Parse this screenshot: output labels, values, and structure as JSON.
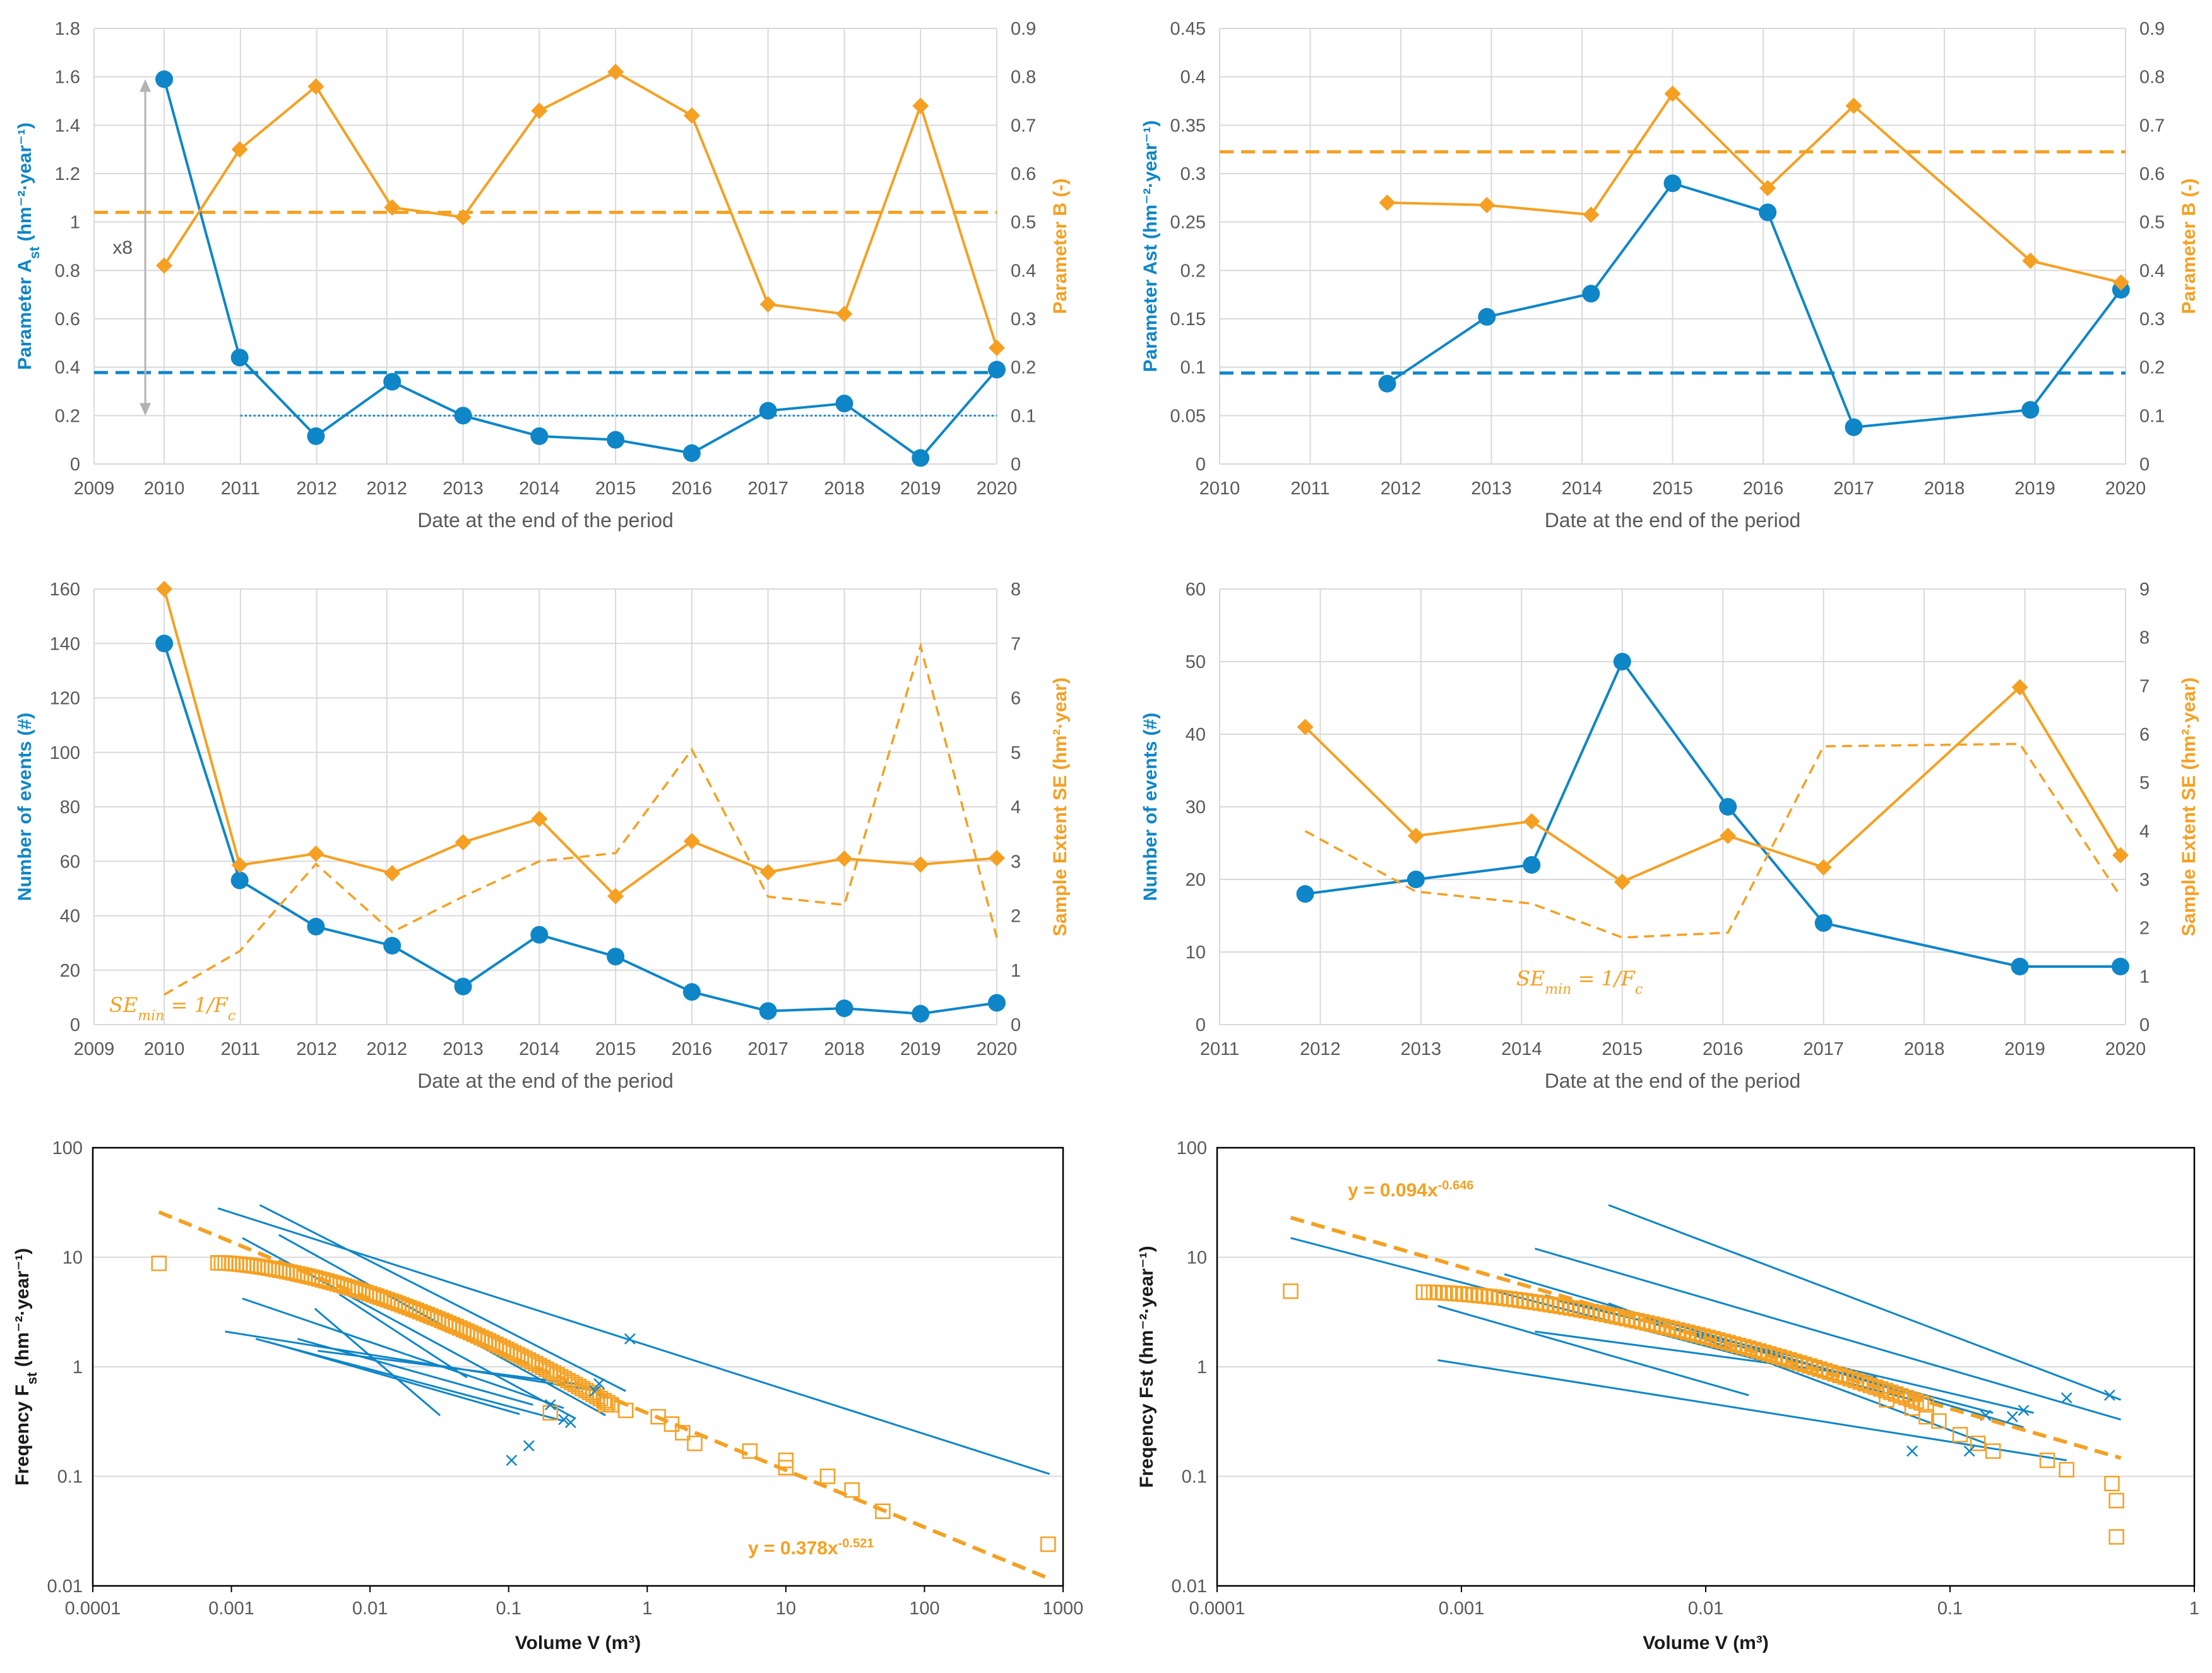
{
  "colors": {
    "blue": "#0e86c8",
    "orange": "#f5a022",
    "grid": "#d9d9d9",
    "axis": "#595959"
  },
  "chart_data": [
    {
      "id": "A",
      "type": "line",
      "xlabel": "Date at the end of the period",
      "ylabel_left_prefix": "Parameter A",
      "ylabel_left_sub": "st",
      "ylabel_left_suffix": " (hm⁻²·year⁻¹)",
      "ylabel_right": "Parameter B (-)",
      "x_tick_labels": [
        "2009",
        "2010",
        "2011",
        "2012",
        "2012",
        "2013",
        "2014",
        "2015",
        "2016",
        "2017",
        "2018",
        "2019",
        "2020"
      ],
      "x_tick_pos": [
        2009.0,
        2009.92,
        2010.92,
        2011.92,
        2012.84,
        2013.84,
        2014.84,
        2015.84,
        2016.84,
        2017.84,
        2018.84,
        2019.84,
        2020.84
      ],
      "ylim_left": [
        0,
        1.8
      ],
      "ylim_right": [
        0,
        0.9
      ],
      "yticks_left": [
        "0",
        "0.2",
        "0.4",
        "0.6",
        "0.8",
        "1",
        "1.2",
        "1.4",
        "1.6",
        "1.8"
      ],
      "yticks_right": [
        "0",
        "0.1",
        "0.2",
        "0.3",
        "0.4",
        "0.5",
        "0.6",
        "0.7",
        "0.8",
        "0.9"
      ],
      "series": [
        {
          "name": "Parameter Ast",
          "axis": "left",
          "color": "blue",
          "marker": "circle",
          "x": [
            2009.92,
            2010.91,
            2011.91,
            2012.91,
            2013.84,
            2014.84,
            2015.84,
            2016.84,
            2017.84,
            2018.84,
            2019.84,
            2020.84
          ],
          "values": [
            1.59,
            0.44,
            0.115,
            0.34,
            0.2,
            0.115,
            0.1,
            0.045,
            0.22,
            0.25,
            0.025,
            0.39
          ]
        },
        {
          "name": "Parameter B",
          "axis": "right",
          "color": "orange",
          "marker": "diamond",
          "x": [
            2009.92,
            2010.91,
            2011.91,
            2012.91,
            2013.84,
            2014.84,
            2015.84,
            2016.84,
            2017.84,
            2018.84,
            2019.84,
            2020.84
          ],
          "values": [
            0.41,
            0.65,
            0.78,
            0.53,
            0.51,
            0.73,
            0.81,
            0.72,
            0.33,
            0.31,
            0.74,
            0.24
          ]
        }
      ],
      "reference_lines": [
        {
          "axis": "right",
          "value": 0.52,
          "color": "orange",
          "style": "dashed"
        },
        {
          "axis": "left",
          "value": 0.378,
          "color": "blue",
          "style": "dashed"
        },
        {
          "axis": "left",
          "value": 0.2,
          "color": "blue",
          "style": "dotted",
          "x_from": 2010.92
        }
      ],
      "annotation": {
        "text": "x8",
        "from_value": 1.59,
        "to_value": 0.2
      }
    },
    {
      "id": "B",
      "type": "line",
      "xlabel": "Date at the end of the period",
      "ylabel_left_prefix": "Parameter Ast",
      "ylabel_left_sub": "",
      "ylabel_left_suffix": " (hm⁻²·year⁻¹)",
      "ylabel_right": "Parameter B (-)",
      "x_tick_labels": [
        "2010",
        "2011",
        "2012",
        "2013",
        "2014",
        "2015",
        "2016",
        "2017",
        "2018",
        "2019",
        "2020"
      ],
      "x_tick_pos": [
        2010,
        2011,
        2012,
        2013,
        2014,
        2015,
        2016,
        2017,
        2018,
        2019,
        2020
      ],
      "ylim_left": [
        0,
        0.45
      ],
      "ylim_right": [
        0,
        0.9
      ],
      "yticks_left": [
        "0",
        "0.05",
        "0.1",
        "0.15",
        "0.2",
        "0.25",
        "0.3",
        "0.35",
        "0.4",
        "0.45"
      ],
      "yticks_right": [
        "0",
        "0.1",
        "0.2",
        "0.3",
        "0.4",
        "0.5",
        "0.6",
        "0.7",
        "0.8",
        "0.9"
      ],
      "series": [
        {
          "name": "Parameter Ast",
          "axis": "left",
          "color": "blue",
          "marker": "circle",
          "x": [
            2011.85,
            2012.95,
            2014.1,
            2015.0,
            2016.05,
            2017.0,
            2018.95,
            2019.95
          ],
          "values": [
            0.083,
            0.152,
            0.176,
            0.29,
            0.26,
            0.038,
            0.056,
            0.18
          ]
        },
        {
          "name": "Parameter B",
          "axis": "right",
          "color": "orange",
          "marker": "diamond",
          "x": [
            2011.85,
            2012.95,
            2014.1,
            2015.0,
            2016.05,
            2017.0,
            2018.95,
            2019.95
          ],
          "values": [
            0.54,
            0.535,
            0.515,
            0.765,
            0.57,
            0.74,
            0.42,
            0.375
          ]
        }
      ],
      "reference_lines": [
        {
          "axis": "right",
          "value": 0.645,
          "color": "orange",
          "style": "dashed"
        },
        {
          "axis": "left",
          "value": 0.094,
          "color": "blue",
          "style": "dashed"
        }
      ]
    },
    {
      "id": "C",
      "type": "line",
      "xlabel": "Date at the end of the period",
      "ylabel_left": "Number of events (#)",
      "ylabel_right": "Sample Extent SE (hm²·year)",
      "x_tick_labels": [
        "2009",
        "2010",
        "2011",
        "2012",
        "2012",
        "2013",
        "2014",
        "2015",
        "2016",
        "2017",
        "2018",
        "2019",
        "2020"
      ],
      "x_tick_pos": [
        2009.0,
        2009.92,
        2010.92,
        2011.92,
        2012.84,
        2013.84,
        2014.84,
        2015.84,
        2016.84,
        2017.84,
        2018.84,
        2019.84,
        2020.84
      ],
      "ylim_left": [
        0,
        160
      ],
      "ylim_right": [
        0,
        8
      ],
      "yticks_left": [
        "0",
        "20",
        "40",
        "60",
        "80",
        "100",
        "120",
        "140",
        "160"
      ],
      "yticks_right": [
        "0",
        "1",
        "2",
        "3",
        "4",
        "5",
        "6",
        "7",
        "8"
      ],
      "series": [
        {
          "name": "Number of events",
          "axis": "left",
          "color": "blue",
          "marker": "circle",
          "x": [
            2009.92,
            2010.91,
            2011.91,
            2012.91,
            2013.84,
            2014.84,
            2015.84,
            2016.84,
            2017.84,
            2018.84,
            2019.84,
            2020.84
          ],
          "values": [
            140,
            53,
            36,
            29,
            14,
            33,
            25,
            12,
            5,
            6,
            4,
            8
          ]
        },
        {
          "name": "Sample Extent SE",
          "axis": "right",
          "color": "orange",
          "marker": "diamond",
          "x": [
            2009.92,
            2010.91,
            2011.91,
            2012.91,
            2013.84,
            2014.84,
            2015.84,
            2016.84,
            2017.84,
            2018.84,
            2019.84,
            2020.84
          ],
          "values": [
            8.0,
            2.93,
            3.14,
            2.78,
            3.35,
            3.78,
            2.36,
            3.37,
            2.8,
            3.05,
            2.94,
            3.06
          ]
        },
        {
          "name": "SEmin = 1/Fc",
          "axis": "right",
          "color": "orange",
          "style": "dashed",
          "x": [
            2009.92,
            2010.91,
            2011.91,
            2012.91,
            2013.84,
            2014.84,
            2015.84,
            2016.84,
            2017.84,
            2018.84,
            2019.84,
            2020.84
          ],
          "values": [
            0.55,
            1.35,
            2.95,
            1.7,
            2.35,
            3.0,
            3.15,
            5.05,
            2.35,
            2.2,
            6.95,
            1.6
          ]
        }
      ],
      "annotation_parts": [
        "SE",
        "min",
        " = 1/F",
        "c"
      ]
    },
    {
      "id": "D",
      "type": "line",
      "xlabel": "Date at the end of the period",
      "ylabel_left": "Number of events (#)",
      "ylabel_right": "Sample Extent SE (hm²·year)",
      "x_tick_labels": [
        "2011",
        "2012",
        "2013",
        "2014",
        "2015",
        "2016",
        "2017",
        "2018",
        "2019",
        "2020"
      ],
      "x_tick_pos": [
        2011,
        2012,
        2013,
        2014,
        2015,
        2016,
        2017,
        2018,
        2019,
        2020
      ],
      "ylim_left": [
        0,
        60
      ],
      "ylim_right": [
        0,
        9
      ],
      "yticks_left": [
        "0",
        "10",
        "20",
        "30",
        "40",
        "50",
        "60"
      ],
      "yticks_right": [
        "0",
        "1",
        "2",
        "3",
        "4",
        "5",
        "6",
        "7",
        "8",
        "9"
      ],
      "series": [
        {
          "name": "Number of events",
          "axis": "left",
          "color": "blue",
          "marker": "circle",
          "x": [
            2011.85,
            2012.95,
            2014.1,
            2015.0,
            2016.05,
            2017.0,
            2018.95,
            2019.95
          ],
          "values": [
            18,
            20,
            22,
            50,
            30,
            14,
            8,
            8
          ]
        },
        {
          "name": "Sample Extent SE",
          "axis": "right",
          "color": "orange",
          "marker": "diamond",
          "x": [
            2011.85,
            2012.95,
            2014.1,
            2015.0,
            2016.05,
            2017.0,
            2018.95,
            2019.95
          ],
          "values": [
            6.15,
            3.9,
            4.2,
            2.95,
            3.9,
            3.25,
            6.97,
            3.5
          ]
        },
        {
          "name": "SEmin = 1/Fc",
          "axis": "right",
          "color": "orange",
          "style": "dashed",
          "x": [
            2011.85,
            2012.95,
            2014.1,
            2015.0,
            2016.05,
            2017.0,
            2018.95,
            2019.95
          ],
          "values": [
            4.0,
            2.75,
            2.5,
            1.8,
            1.9,
            5.75,
            5.8,
            2.65
          ]
        }
      ],
      "annotation_parts": [
        "SE",
        "min",
        " = 1/F",
        "c"
      ]
    },
    {
      "id": "E",
      "type": "scatter",
      "scale": "log-log",
      "xlabel": "Volume V (m³)",
      "ylabel_prefix": "Freqency F",
      "ylabel_sub": "st",
      "ylabel_suffix": " (hm⁻²·year⁻¹)",
      "x_tick_labels": [
        "0.0001",
        "0.001",
        "0.01",
        "0.1",
        "1",
        "10",
        "100",
        "1000"
      ],
      "y_tick_labels": [
        "0.01",
        "0.1",
        "1",
        "10",
        "100"
      ],
      "xlim": [
        0.0001,
        1000
      ],
      "ylim": [
        0.01,
        100
      ],
      "fit": {
        "label": "y = 0.378x",
        "exponent": "-0.521",
        "a": 0.378,
        "b": -0.521,
        "x_range": [
          0.0003,
          800
        ]
      },
      "points": [
        [
          0.0003,
          8.8
        ],
        [
          0.2,
          0.38
        ],
        [
          0.5,
          0.45
        ],
        [
          0.7,
          0.4
        ],
        [
          1.2,
          0.35
        ],
        [
          1.5,
          0.3
        ],
        [
          1.8,
          0.25
        ],
        [
          2.2,
          0.2
        ],
        [
          5.5,
          0.17
        ],
        [
          10,
          0.14
        ],
        [
          10,
          0.12
        ],
        [
          20,
          0.1
        ],
        [
          30,
          0.075
        ],
        [
          50,
          0.048
        ],
        [
          780,
          0.024
        ]
      ],
      "cloud": {
        "x_range": [
          0.0008,
          0.55
        ],
        "y_range": [
          8.9,
          0.45
        ],
        "count": 110
      },
      "annual_fits": [
        {
          "x": [
            0.0008,
            800
          ],
          "y": [
            28,
            0.105
          ]
        },
        {
          "x": [
            0.0016,
            0.7
          ],
          "y": [
            30,
            0.6
          ]
        },
        {
          "x": [
            0.0012,
            0.3
          ],
          "y": [
            15,
            0.34
          ]
        },
        {
          "x": [
            0.0022,
            0.5
          ],
          "y": [
            16,
            0.36
          ]
        },
        {
          "x": [
            0.0012,
            0.25
          ],
          "y": [
            4.2,
            0.42
          ]
        },
        {
          "x": [
            0.0009,
            0.45
          ],
          "y": [
            2.1,
            0.6
          ]
        },
        {
          "x": [
            0.0015,
            0.25
          ],
          "y": [
            1.8,
            0.32
          ]
        },
        {
          "x": [
            0.0018,
            0.12
          ],
          "y": [
            1.7,
            0.37
          ]
        },
        {
          "x": [
            0.004,
            0.032
          ],
          "y": [
            3.4,
            0.36
          ]
        },
        {
          "x": [
            0.0042,
            0.3
          ],
          "y": [
            1.4,
            0.7
          ]
        },
        {
          "x": [
            0.006,
            0.05
          ],
          "y": [
            4.6,
            0.8
          ]
        },
        {
          "x": [
            0.003,
            0.15
          ],
          "y": [
            1.8,
            0.45
          ]
        }
      ],
      "cross_markers": [
        [
          0.105,
          0.14
        ],
        [
          0.14,
          0.19
        ],
        [
          0.2,
          0.45
        ],
        [
          0.25,
          0.33
        ],
        [
          0.28,
          0.31
        ],
        [
          0.42,
          0.6
        ],
        [
          0.45,
          0.7
        ],
        [
          0.75,
          1.8
        ]
      ]
    },
    {
      "id": "F",
      "type": "scatter",
      "scale": "log-log",
      "xlabel": "Volume V (m³)",
      "ylabel_prefix": "Freqency Fst",
      "ylabel_sub": "",
      "ylabel_suffix": " (hm⁻²·year⁻¹)",
      "x_tick_labels": [
        "0.0001",
        "0.001",
        "0.01",
        "0.1",
        "1"
      ],
      "y_tick_labels": [
        "0.01",
        "0.1",
        "1",
        "10",
        "100"
      ],
      "xlim": [
        0.0001,
        1
      ],
      "ylim": [
        0.01,
        100
      ],
      "fit": {
        "label": "y = 0.094x",
        "exponent": "-0.646",
        "a": 0.094,
        "b": -0.646,
        "x_range": [
          0.0002,
          0.5
        ]
      },
      "points": [
        [
          0.0002,
          4.9
        ],
        [
          0.055,
          0.5
        ],
        [
          0.07,
          0.42
        ],
        [
          0.08,
          0.35
        ],
        [
          0.09,
          0.32
        ],
        [
          0.11,
          0.24
        ],
        [
          0.13,
          0.2
        ],
        [
          0.15,
          0.17
        ],
        [
          0.25,
          0.14
        ],
        [
          0.3,
          0.115
        ],
        [
          0.46,
          0.086
        ],
        [
          0.48,
          0.06
        ],
        [
          0.48,
          0.028
        ]
      ],
      "cloud": {
        "x_range": [
          0.0007,
          0.08
        ],
        "y_range": [
          4.8,
          0.45
        ],
        "count": 100
      },
      "annual_fits": [
        {
          "x": [
            0.004,
            0.5
          ],
          "y": [
            30,
            0.5
          ]
        },
        {
          "x": [
            0.002,
            0.5
          ],
          "y": [
            12,
            0.33
          ]
        },
        {
          "x": [
            0.0002,
            0.07
          ],
          "y": [
            15,
            0.5
          ]
        },
        {
          "x": [
            0.0008,
            0.3
          ],
          "y": [
            1.15,
            0.14
          ]
        },
        {
          "x": [
            0.0008,
            0.015
          ],
          "y": [
            3.6,
            0.55
          ]
        },
        {
          "x": [
            0.0015,
            0.2
          ],
          "y": [
            7,
            0.28
          ]
        },
        {
          "x": [
            0.002,
            0.05
          ],
          "y": [
            2.1,
            0.8
          ]
        },
        {
          "x": [
            0.0022,
            0.15
          ],
          "y": [
            4.5,
            0.38
          ]
        },
        {
          "x": [
            0.0025,
            0.22
          ],
          "y": [
            4.0,
            0.38
          ]
        },
        {
          "x": [
            0.004,
            0.14
          ],
          "y": [
            3.8,
            0.2
          ]
        }
      ],
      "cross_markers": [
        [
          0.07,
          0.17
        ],
        [
          0.12,
          0.17
        ],
        [
          0.14,
          0.36
        ],
        [
          0.18,
          0.35
        ],
        [
          0.2,
          0.4
        ],
        [
          0.3,
          0.52
        ],
        [
          0.45,
          0.55
        ]
      ]
    }
  ]
}
